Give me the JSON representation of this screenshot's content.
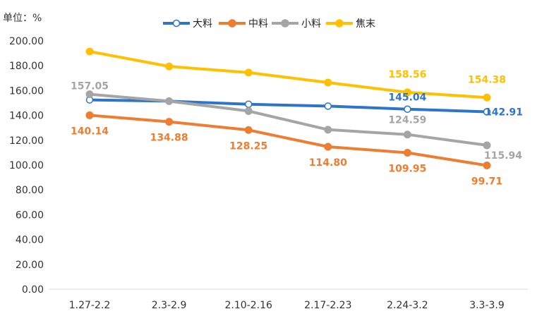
{
  "chart_data": {
    "type": "line",
    "unit_label": "单位：%",
    "categories": [
      "1.27-2.2",
      "2.3-2.9",
      "2.10-2.16",
      "2.17-2.23",
      "2.24-3.2",
      "3.3-3.9"
    ],
    "ylim": [
      0,
      200
    ],
    "ytick_labels": [
      "0.00",
      "20.00",
      "40.00",
      "60.00",
      "80.00",
      "100.00",
      "120.00",
      "140.00",
      "160.00",
      "180.00",
      "200.00"
    ],
    "grid": false,
    "legend_position": "top-center",
    "series": [
      {
        "name": "大料",
        "color": "#2e75c9",
        "marker": "open-circle",
        "values": [
          152.5,
          151.5,
          149.0,
          147.5,
          145.04,
          142.91
        ],
        "data_labels": [
          "",
          "",
          "",
          "",
          "145.04",
          "142.91"
        ]
      },
      {
        "name": "中料",
        "color": "#ed7d31",
        "marker": "filled-circle",
        "values": [
          140.14,
          134.88,
          128.25,
          114.8,
          109.95,
          99.71
        ],
        "data_labels": [
          "140.14",
          "134.88",
          "128.25",
          "114.80",
          "109.95",
          "99.71"
        ]
      },
      {
        "name": "小料",
        "color": "#a5a5a5",
        "marker": "filled-circle",
        "values": [
          157.05,
          151.5,
          143.5,
          128.5,
          124.59,
          115.94
        ],
        "data_labels": [
          "157.05",
          "",
          "",
          "",
          "124.59",
          "115.94"
        ]
      },
      {
        "name": "焦末",
        "color": "#ffc000",
        "marker": "filled-circle",
        "values": [
          191.5,
          179.5,
          174.5,
          166.5,
          158.56,
          154.38
        ],
        "data_labels": [
          "",
          "",
          "",
          "",
          "158.56",
          "154.38"
        ]
      }
    ]
  }
}
